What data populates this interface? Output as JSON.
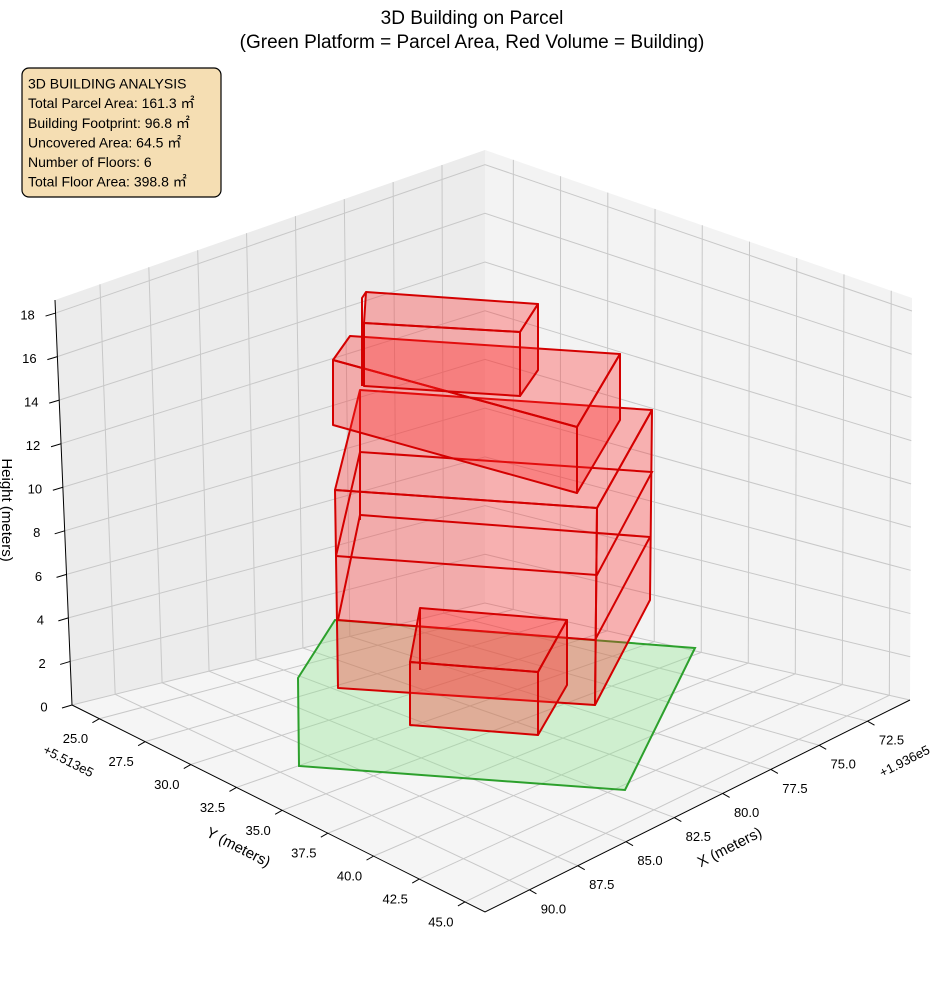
{
  "chart_data": {
    "type": "3d",
    "title": "3D Building on Parcel",
    "subtitle": "(Green Platform = Parcel Area, Red Volume = Building)",
    "xlabel": "X (meters)",
    "ylabel": "Y (meters)",
    "zlabel": "Height (meters)",
    "x_offset": "+1.936e5",
    "y_offset": "+5.513e5",
    "xlim": [
      70.3,
      92.3
    ],
    "ylim": [
      23.5,
      46.1
    ],
    "zlim": [
      0,
      18.6
    ],
    "xticks": [
      72.5,
      {
        "value": 75,
        "label": "75.0"
      },
      77.5,
      {
        "value": 80,
        "label": "80.0"
      },
      82.5,
      {
        "value": 85,
        "label": "85.0"
      },
      87.5,
      {
        "value": 90,
        "label": "90.0"
      }
    ],
    "yticks": [
      {
        "value": 25,
        "label": "25.0"
      },
      27.5,
      {
        "value": 30,
        "label": "30.0"
      },
      32.5,
      {
        "value": 35,
        "label": "35.0"
      },
      37.5,
      {
        "value": 40,
        "label": "40.0"
      },
      42.5,
      {
        "value": 45,
        "label": "45.0"
      }
    ],
    "zticks": [
      0,
      2,
      4,
      6,
      8,
      10,
      12,
      14,
      16,
      18
    ],
    "grid": true,
    "annotation": {
      "title": "3D BUILDING ANALYSIS",
      "lines": [
        "Total Parcel Area: 161.3 ㎡",
        "Building Footprint: 96.8 ㎡",
        "Uncovered Area: 64.5 ㎡",
        "Number of Floors: 6",
        "Total Floor Area: 398.8 ㎡"
      ]
    }
  }
}
